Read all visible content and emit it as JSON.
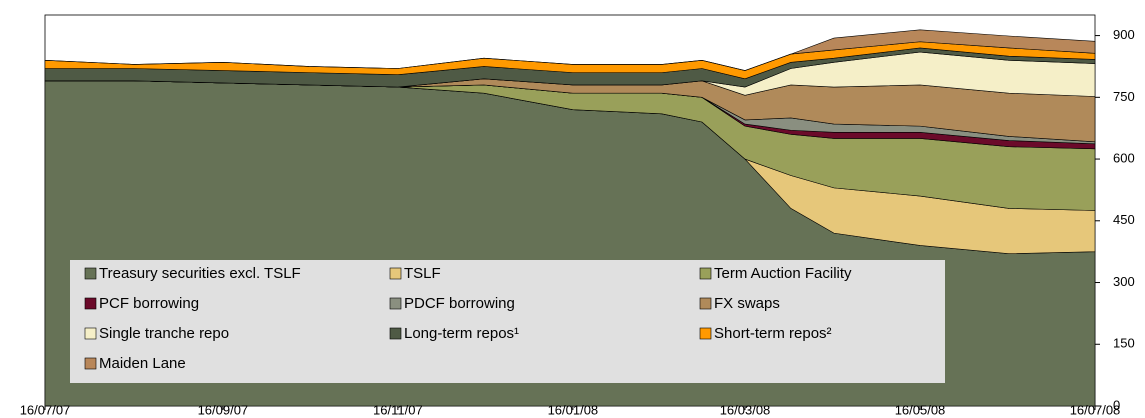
{
  "chart_data": {
    "type": "stacked_area",
    "x": [
      "2007-07-16",
      "2007-08-16",
      "2007-09-16",
      "2007-10-16",
      "2007-11-16",
      "2007-12-16",
      "2008-01-16",
      "2008-02-16",
      "2008-03-01",
      "2008-03-16",
      "2008-04-01",
      "2008-04-16",
      "2008-05-16",
      "2008-06-16",
      "2008-07-16"
    ],
    "xticks": [
      {
        "value": "2007-07-16",
        "label": "16/07/07"
      },
      {
        "value": "2007-09-16",
        "label": "16/09/07"
      },
      {
        "value": "2007-11-16",
        "label": "16/11/07"
      },
      {
        "value": "2008-01-16",
        "label": "16/01/08"
      },
      {
        "value": "2008-03-16",
        "label": "16/03/08"
      },
      {
        "value": "2008-05-16",
        "label": "16/05/08"
      },
      {
        "value": "2008-07-16",
        "label": "16/07/08"
      }
    ],
    "ylim": [
      0,
      950
    ],
    "yticks": [
      0,
      150,
      300,
      450,
      600,
      750,
      900
    ],
    "series": [
      {
        "name": "Treasury securities excl. TSLF",
        "color": "#667256",
        "values": [
          790,
          790,
          785,
          780,
          775,
          760,
          720,
          710,
          690,
          600,
          480,
          420,
          390,
          370,
          375
        ]
      },
      {
        "name": "TSLF",
        "color": "#e6c77a",
        "values": [
          0,
          0,
          0,
          0,
          0,
          0,
          0,
          0,
          0,
          0,
          80,
          110,
          120,
          110,
          100
        ]
      },
      {
        "name": "Term Auction Facility",
        "color": "#99a05a",
        "values": [
          0,
          0,
          0,
          0,
          0,
          20,
          40,
          50,
          60,
          80,
          100,
          120,
          140,
          150,
          150
        ]
      },
      {
        "name": "PCF borrowing",
        "color": "#6b0a2a",
        "values": [
          0,
          0,
          0,
          0,
          0,
          0,
          0,
          0,
          0,
          5,
          10,
          15,
          15,
          15,
          12
        ]
      },
      {
        "name": "PDCF borrowing",
        "color": "#8a8f80",
        "values": [
          0,
          0,
          0,
          0,
          0,
          0,
          0,
          0,
          0,
          10,
          30,
          20,
          15,
          10,
          5
        ]
      },
      {
        "name": "FX swaps",
        "color": "#b08a5a",
        "values": [
          0,
          0,
          0,
          0,
          0,
          15,
          20,
          20,
          40,
          60,
          80,
          90,
          100,
          105,
          110
        ]
      },
      {
        "name": "Single tranche repo",
        "color": "#f5efc8",
        "values": [
          0,
          0,
          0,
          0,
          0,
          0,
          0,
          0,
          0,
          20,
          40,
          60,
          80,
          80,
          80
        ]
      },
      {
        "name": "Long-term repos¹",
        "color": "#4f5a45",
        "values": [
          30,
          30,
          30,
          30,
          30,
          30,
          30,
          30,
          30,
          20,
          15,
          10,
          10,
          10,
          10
        ]
      },
      {
        "name": "Short-term repos²",
        "color": "#ff9900",
        "values": [
          20,
          10,
          20,
          15,
          15,
          20,
          20,
          20,
          20,
          20,
          20,
          20,
          15,
          20,
          15
        ]
      },
      {
        "name": "Maiden Lane",
        "color": "#b8875a",
        "values": [
          0,
          0,
          0,
          0,
          0,
          0,
          0,
          0,
          0,
          0,
          0,
          29,
          29,
          29,
          29
        ]
      }
    ]
  }
}
